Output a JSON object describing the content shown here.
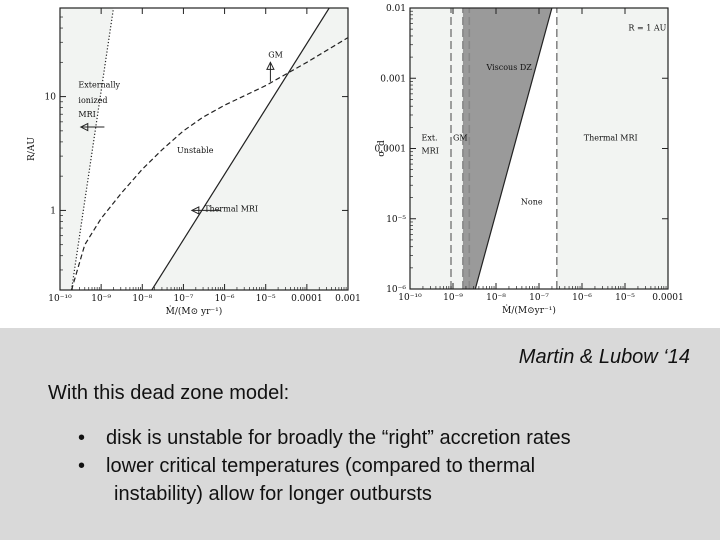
{
  "chart_data": [
    {
      "type": "line",
      "xscale": "log",
      "yscale": "log",
      "xlim": [
        1e-10,
        0.001
      ],
      "ylim": [
        0.2,
        60
      ],
      "xlabel": "Ṁ/(M⊙ yr⁻¹)",
      "ylabel": "R/AU",
      "xticks": [
        {
          "value": 1e-10,
          "label": "10⁻¹⁰"
        },
        {
          "value": 1e-09,
          "label": "10⁻⁹"
        },
        {
          "value": 1e-08,
          "label": "10⁻⁸"
        },
        {
          "value": 1e-07,
          "label": "10⁻⁷"
        },
        {
          "value": 1e-06,
          "label": "10⁻⁶"
        },
        {
          "value": 1e-05,
          "label": "10⁻⁵"
        },
        {
          "value": 0.0001,
          "label": "0.0001"
        },
        {
          "value": 0.001,
          "label": "0.001"
        }
      ],
      "yticks": [
        {
          "value": 1,
          "label": "1"
        },
        {
          "value": 10,
          "label": "10"
        }
      ],
      "series": [
        {
          "style": "dotted",
          "x": [
            1.9e-10,
            2e-09
          ],
          "y": [
            0.2,
            60
          ]
        },
        {
          "style": "dashed",
          "x": [
            1.9e-10,
            4e-10,
            1e-09,
            3e-09,
            1e-08,
            3e-08,
            1e-07,
            3e-07,
            1e-06,
            1e-05,
            0.0001,
            0.001
          ],
          "y": [
            0.2,
            0.5,
            0.85,
            1.4,
            2.3,
            3.4,
            5.0,
            6.6,
            8.4,
            12.5,
            20,
            33
          ]
        },
        {
          "style": "solid",
          "x": [
            1.7e-08,
            0.00035
          ],
          "y": [
            0.2,
            60
          ]
        }
      ],
      "shaded_regions": [
        {
          "bound_x": [
            1e-10,
            1.9e-10,
            2e-09,
            2e-09,
            1e-10
          ],
          "bound_y": [
            0.2,
            0.2,
            60,
            60,
            60
          ]
        },
        {
          "bound_x": [
            1.7e-08,
            0.001,
            0.001,
            0.00035
          ],
          "bound_y": [
            0.2,
            0.2,
            60,
            60
          ]
        }
      ],
      "annotations": [
        {
          "text": "Externally",
          "x": 2.8e-10,
          "y": 12
        },
        {
          "text": "ionized",
          "x": 2.8e-10,
          "y": 8.8
        },
        {
          "text": "MRI",
          "x": 2.8e-10,
          "y": 6.6
        },
        {
          "text": "GM",
          "x": 1.15e-05,
          "y": 22
        },
        {
          "text": "Unstable",
          "x": 7e-08,
          "y": 3.2
        },
        {
          "text": "Thermal MRI",
          "x": 3.2e-07,
          "y": 0.98
        }
      ]
    },
    {
      "type": "area",
      "xscale": "log",
      "yscale": "log",
      "xlim": [
        1e-10,
        0.0001
      ],
      "ylim": [
        1e-06,
        0.01
      ],
      "xlabel": "Ṁ/(M⊙yr⁻¹)",
      "ylabel": "σ_d",
      "xticks": [
        {
          "value": 1e-10,
          "label": "10⁻¹⁰"
        },
        {
          "value": 1e-09,
          "label": "10⁻⁹"
        },
        {
          "value": 1e-08,
          "label": "10⁻⁸"
        },
        {
          "value": 1e-07,
          "label": "10⁻⁷"
        },
        {
          "value": 1e-06,
          "label": "10⁻⁶"
        },
        {
          "value": 1e-05,
          "label": "10⁻⁵"
        },
        {
          "value": 0.0001,
          "label": "0.0001"
        }
      ],
      "yticks": [
        {
          "value": 1e-06,
          "label": "10⁻⁶"
        },
        {
          "value": 1e-05,
          "label": "10⁻⁵"
        },
        {
          "value": 0.0001,
          "label": "0.0001"
        },
        {
          "value": 0.001,
          "label": "0.001"
        },
        {
          "value": 0.01,
          "label": "0.01"
        }
      ],
      "series": [
        {
          "style": "solid",
          "x": [
            3.3e-09,
            2e-07
          ],
          "y": [
            1e-06,
            0.01
          ]
        },
        {
          "style": "dashed",
          "x": [
            9e-10,
            9e-10
          ],
          "y": [
            1e-06,
            0.01
          ]
        },
        {
          "style": "dashed",
          "x": [
            1.7e-09,
            1.7e-09
          ],
          "y": [
            1e-06,
            0.01
          ]
        },
        {
          "style": "dashed",
          "x": [
            2.4e-09,
            2.4e-09
          ],
          "y": [
            1e-06,
            0.01
          ]
        },
        {
          "style": "dashed",
          "x": [
            2.6e-07,
            2.6e-07
          ],
          "y": [
            1e-06,
            0.01
          ]
        }
      ],
      "shaded_regions": [
        {
          "x_range": [
            1e-10,
            1.7e-09
          ]
        },
        {
          "x_range": [
            2.6e-07,
            0.0001
          ]
        }
      ],
      "dark_region": {
        "bound_x": [
          1.7e-09,
          3.3e-09,
          2e-07,
          1.7e-09
        ],
        "bound_y": [
          1e-06,
          1e-06,
          0.01,
          0.01
        ]
      },
      "annotations": [
        {
          "text": "R = 1 AU",
          "x": 1.2e-05,
          "y": 0.0048
        },
        {
          "text": "Viscous DZ",
          "x": 6e-09,
          "y": 0.0013
        },
        {
          "text": "Ext.",
          "x": 1.85e-10,
          "y": 0.00013
        },
        {
          "text": "MRI",
          "x": 1.85e-10,
          "y": 8.5e-05
        },
        {
          "text": "GM",
          "x": 1e-09,
          "y": 0.00013
        },
        {
          "text": "Thermal MRI",
          "x": 1.1e-06,
          "y": 0.00013
        },
        {
          "text": "None",
          "x": 3.8e-08,
          "y": 1.6e-05
        }
      ]
    }
  ],
  "colors": {
    "panel_fill": "#f2f4f2",
    "dark_fill": "#9a9a9a",
    "line": "#222222",
    "text_band": "#d9d9d9"
  },
  "slide": {
    "citation": "Martin & Lubow ‘14",
    "intro": "With this dead zone model:",
    "bullet_marker": "•",
    "bullets": [
      "disk is unstable for broadly the “right” accretion rates",
      "lower critical temperatures (compared to thermal"
    ],
    "bullet_continuation": "instability) allow for longer outbursts"
  }
}
